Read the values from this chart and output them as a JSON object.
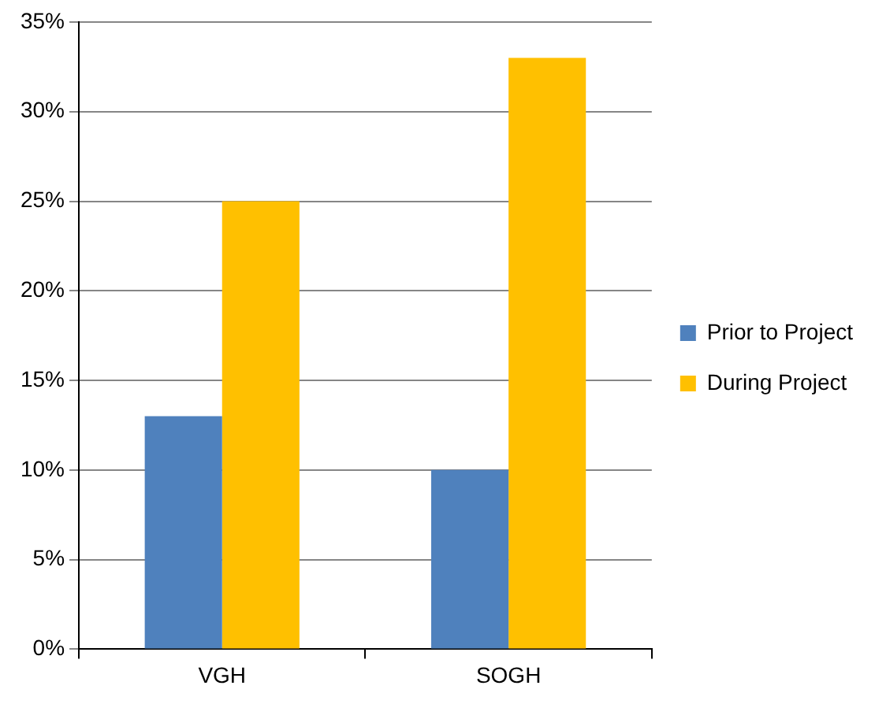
{
  "chart_data": {
    "type": "bar",
    "categories": [
      "VGH",
      "SOGH"
    ],
    "series": [
      {
        "name": "Prior to Project",
        "color": "#4f81bd",
        "values": [
          13,
          10
        ]
      },
      {
        "name": "During Project",
        "color": "#ffc000",
        "values": [
          25,
          33
        ]
      }
    ],
    "ylim": [
      0,
      35
    ],
    "yticks": [
      {
        "value": 0,
        "label": "0%"
      },
      {
        "value": 5,
        "label": "5%"
      },
      {
        "value": 10,
        "label": "10%"
      },
      {
        "value": 15,
        "label": "15%"
      },
      {
        "value": 20,
        "label": "20%"
      },
      {
        "value": 25,
        "label": "25%"
      },
      {
        "value": 30,
        "label": "30%"
      },
      {
        "value": 35,
        "label": "35%"
      }
    ],
    "grid": "y",
    "legend": "right"
  }
}
